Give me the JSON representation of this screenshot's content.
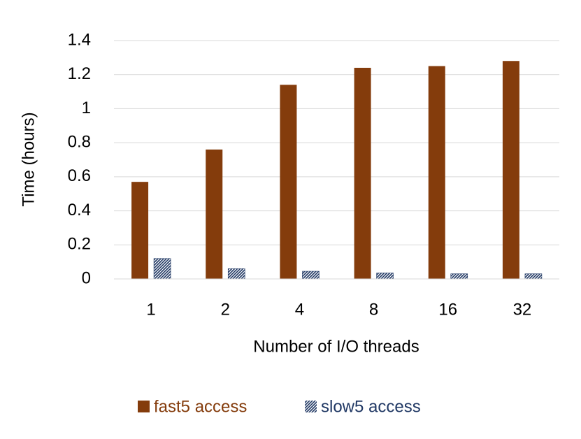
{
  "chart_data": {
    "type": "bar",
    "y_label": "Time (hours)",
    "x_label": "Number of I/O threads",
    "categories": [
      "1",
      "2",
      "4",
      "8",
      "16",
      "32"
    ],
    "series": [
      {
        "name": "fast5 access",
        "color": "#843c0c",
        "values": [
          0.57,
          0.76,
          1.14,
          1.24,
          1.25,
          1.28
        ]
      },
      {
        "name": "slow5 access",
        "color": "#203864",
        "hatch": true,
        "values": [
          0.12,
          0.06,
          0.045,
          0.035,
          0.03,
          0.03
        ]
      }
    ],
    "ylim": [
      0,
      1.4
    ],
    "yticks": [
      0,
      0.2,
      0.4,
      0.6,
      0.8,
      1,
      1.2,
      1.4
    ],
    "grid": true
  }
}
